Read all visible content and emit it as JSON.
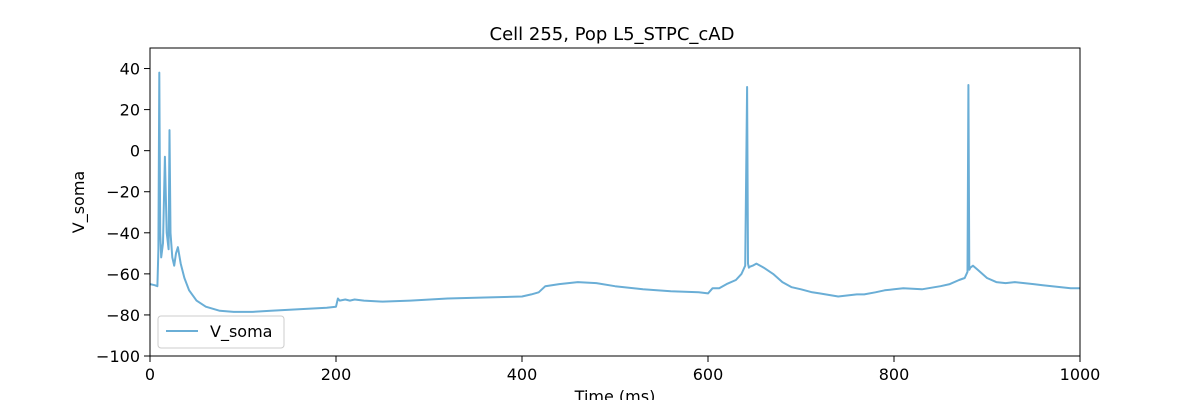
{
  "chart_data": {
    "type": "line",
    "title": "Cell 255, Pop L5_STPC_cAD",
    "xlabel": "Time (ms)",
    "ylabel": "V_soma",
    "xlim": [
      0,
      1000
    ],
    "ylim": [
      -100,
      50
    ],
    "xticks": [
      "0",
      "200",
      "400",
      "600",
      "800",
      "1000"
    ],
    "yticks": [
      "−100",
      "−80",
      "−60",
      "−40",
      "−20",
      "0",
      "20",
      "40"
    ],
    "grid": false,
    "legend": {
      "position": "lower-left",
      "entries": [
        "V_soma"
      ]
    },
    "series": [
      {
        "name": "V_soma",
        "color": "#6aaed6",
        "x": [
          0,
          5,
          8,
          9,
          10,
          11,
          12,
          14,
          16,
          18,
          20,
          21,
          22,
          24,
          26,
          28,
          30,
          33,
          37,
          42,
          50,
          60,
          75,
          90,
          110,
          130,
          150,
          170,
          190,
          200,
          202,
          204,
          210,
          215,
          220,
          230,
          250,
          280,
          320,
          360,
          400,
          410,
          418,
          425,
          440,
          460,
          480,
          500,
          530,
          560,
          590,
          600,
          605,
          612,
          620,
          630,
          636,
          640,
          642,
          643,
          644,
          645,
          648,
          652,
          660,
          670,
          680,
          690,
          700,
          712,
          720,
          740,
          760,
          768,
          780,
          790,
          800,
          810,
          830,
          850,
          860,
          870,
          876,
          879,
          880,
          881,
          882,
          885,
          890,
          900,
          910,
          920,
          930,
          940,
          950,
          960,
          970,
          980,
          990,
          1000
        ],
        "values": [
          -65,
          -65.5,
          -66,
          -48,
          38,
          -40,
          -52,
          -45,
          -3,
          -40,
          -48,
          10,
          -40,
          -52,
          -56,
          -50,
          -47,
          -55,
          -62,
          -68,
          -73,
          -76,
          -78,
          -78.5,
          -78.5,
          -78,
          -77.5,
          -77,
          -76.5,
          -76,
          -72,
          -73,
          -72.5,
          -73,
          -72.5,
          -73,
          -73.5,
          -73,
          -72,
          -71.5,
          -71,
          -70,
          -69,
          -66,
          -65,
          -64,
          -64.5,
          -66,
          -67.5,
          -68.5,
          -69,
          -69.5,
          -67,
          -67,
          -65,
          -63,
          -60,
          -56,
          31,
          -55,
          -57,
          -56.5,
          -56,
          -55,
          -57,
          -60,
          -64,
          -66.5,
          -67.5,
          -69,
          -69.5,
          -71,
          -70,
          -70,
          -69,
          -68,
          -67.5,
          -67,
          -67.5,
          -66,
          -65,
          -63,
          -62,
          -59,
          32,
          -58,
          -57,
          -56,
          -58,
          -62,
          -64,
          -64.5,
          -64,
          -64.5,
          -65,
          -65.5,
          -66,
          -66.5,
          -67,
          -67
        ]
      }
    ]
  }
}
